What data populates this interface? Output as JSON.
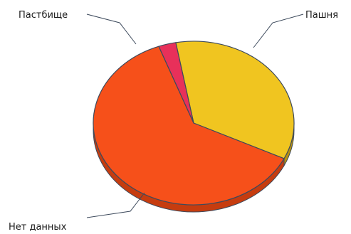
{
  "chart_data": {
    "type": "pie",
    "style": "3d-pie",
    "title": "",
    "legend": "none",
    "slices": [
      {
        "label": "Пашня",
        "value": 35.0,
        "color": "#f0c520",
        "side_color": "#b8920f"
      },
      {
        "label": "Нет данных",
        "value": 62.2,
        "color": "#f6501a",
        "side_color": "#c63c0f"
      },
      {
        "label": "Пастбище",
        "value": 2.8,
        "color": "#e8305a",
        "side_color": "#b3203f"
      }
    ],
    "outline_color": "#3d4a5c"
  }
}
